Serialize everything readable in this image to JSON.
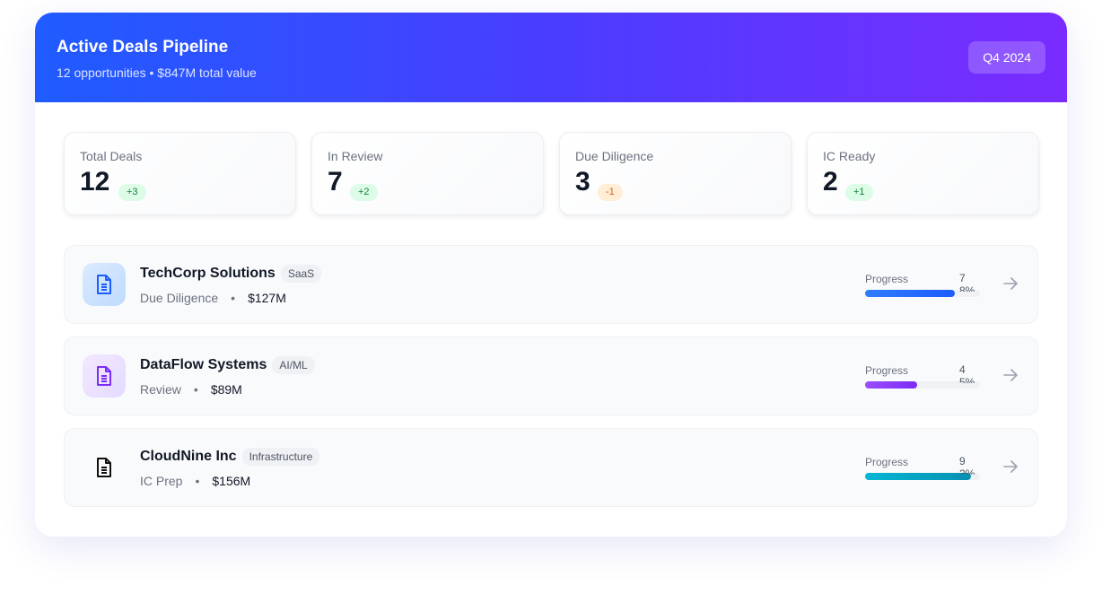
{
  "header": {
    "title": "Active Deals Pipeline",
    "subtitle": "12 opportunities • $847M total value",
    "period": "Q4 2024"
  },
  "stats": [
    {
      "label": "Total Deals",
      "value": "12",
      "change": "+3",
      "trend": "up"
    },
    {
      "label": "In Review",
      "value": "7",
      "change": "+2",
      "trend": "up"
    },
    {
      "label": "Due Diligence",
      "value": "3",
      "change": "-1",
      "trend": "down"
    },
    {
      "label": "IC Ready",
      "value": "2",
      "change": "+1",
      "trend": "up"
    }
  ],
  "deals": [
    {
      "name": "TechCorp Solutions",
      "tag": "SaaS",
      "stage": "Due Diligence",
      "value": "$127M",
      "progress_label": "Progress",
      "progress": 78,
      "progress_text": "78%",
      "icon": "document-icon",
      "color": "#1d5cff"
    },
    {
      "name": "DataFlow Systems",
      "tag": "AI/ML",
      "stage": "Review",
      "value": "$89M",
      "progress_label": "Progress",
      "progress": 45,
      "progress_text": "45%",
      "icon": "document-icon",
      "color": "#7c2cf5"
    },
    {
      "name": "CloudNine Inc",
      "tag": "Infrastructure",
      "stage": "IC Prep",
      "value": "$156M",
      "progress_label": "Progress",
      "progress": 92,
      "progress_text": "92%",
      "icon": "document-icon",
      "color": "#0891b2"
    }
  ],
  "separator": "•"
}
